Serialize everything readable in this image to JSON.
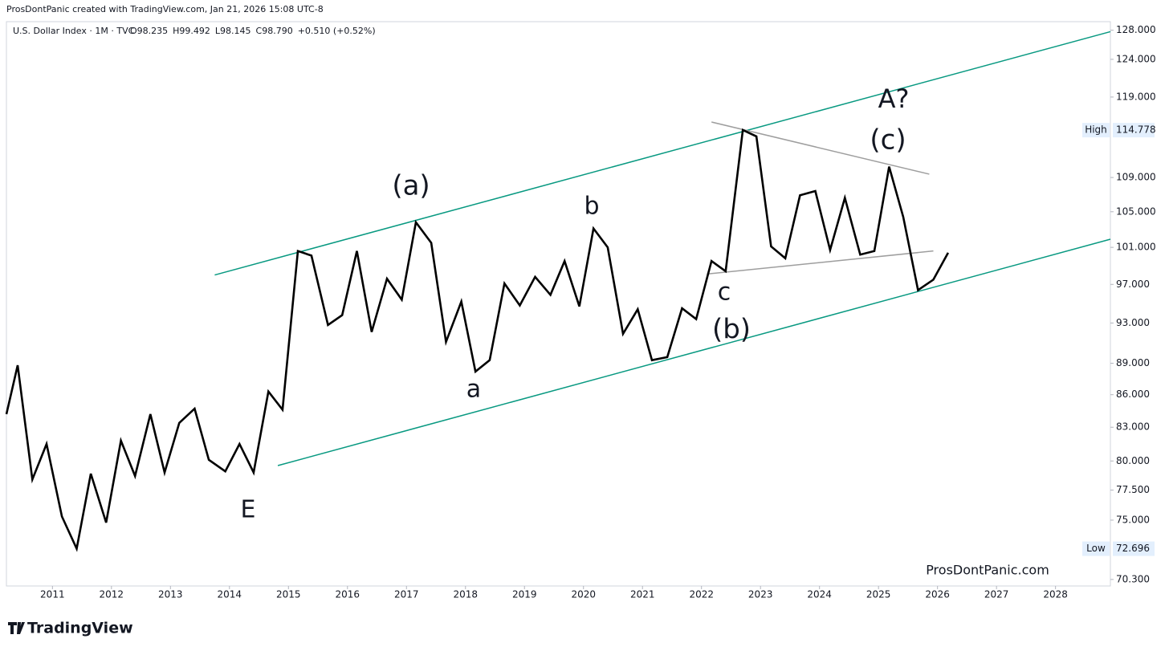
{
  "header": "ProsDontPanic created with TradingView.com, Jan 21, 2026 15:08 UTC-8",
  "footer_brand": "TradingView",
  "chart_data": {
    "type": "line",
    "symbol": "U.S. Dollar Index · 1M · TVC",
    "ohlc": [
      "O98.235",
      "H99.492",
      "L98.145",
      "C98.790",
      "+0.510 (+0.52%)"
    ],
    "log_scale": true,
    "grid": false,
    "x": [
      2010.22,
      2010.41,
      2010.66,
      2010.9,
      2011.16,
      2011.41,
      2011.65,
      2011.91,
      2012.16,
      2012.4,
      2012.66,
      2012.9,
      2013.15,
      2013.41,
      2013.65,
      2013.93,
      2014.17,
      2014.41,
      2014.66,
      2014.9,
      2015.16,
      2015.39,
      2015.67,
      2015.91,
      2016.16,
      2016.41,
      2016.67,
      2016.92,
      2017.16,
      2017.42,
      2017.67,
      2017.93,
      2018.17,
      2018.41,
      2018.66,
      2018.92,
      2019.18,
      2019.44,
      2019.68,
      2019.93,
      2020.17,
      2020.41,
      2020.67,
      2020.92,
      2021.16,
      2021.42,
      2021.67,
      2021.91,
      2022.17,
      2022.41,
      2022.7,
      2022.93,
      2023.18,
      2023.42,
      2023.67,
      2023.93,
      2024.18,
      2024.43,
      2024.69,
      2024.93,
      2025.18,
      2025.42,
      2025.67,
      2025.93,
      2026.18
    ],
    "series": [
      {
        "color": "#000000",
        "values": [
          84.2,
          88.8,
          78.4,
          81.5,
          75.3,
          72.7,
          78.9,
          74.8,
          81.8,
          78.7,
          84.2,
          79.0,
          83.4,
          84.7,
          80.1,
          79.1,
          81.5,
          79.0,
          86.3,
          84.6,
          100.6,
          100.1,
          92.8,
          93.8,
          100.6,
          92.1,
          97.6,
          95.4,
          103.8,
          101.5,
          91.1,
          95.2,
          88.2,
          89.3,
          97.1,
          94.8,
          97.8,
          95.9,
          99.5,
          94.7,
          103.1,
          101.0,
          91.9,
          94.4,
          89.3,
          89.6,
          94.5,
          93.4,
          99.5,
          98.4,
          114.8,
          114.0,
          101.1,
          99.8,
          106.9,
          107.4,
          100.7,
          106.6,
          100.2,
          100.6,
          110.3,
          104.4,
          96.4,
          97.5,
          100.4
        ]
      }
    ],
    "trendlines": [
      {
        "color": "#089981",
        "x": [
          2013.75,
          2028.93
        ],
        "values": [
          98.0,
          127.8
        ]
      },
      {
        "color": "#089981",
        "x": [
          2014.82,
          2028.93
        ],
        "values": [
          79.6,
          101.9
        ]
      },
      {
        "color": "#9e9e9e",
        "x": [
          2022.17,
          2025.86
        ],
        "values": [
          115.8,
          109.4
        ]
      },
      {
        "color": "#9e9e9e",
        "x": [
          2022.09,
          2025.93
        ],
        "values": [
          98.1,
          100.6
        ]
      }
    ],
    "annotations": [
      {
        "text": "(a)",
        "color": "#089981"
      },
      {
        "text": "b",
        "color": "#e65100"
      },
      {
        "text": "a",
        "color": "#e65100"
      },
      {
        "text": "E",
        "color": "#2962ff"
      },
      {
        "text": "c",
        "color": "#e65100"
      },
      {
        "text": "(b)",
        "color": "#089981"
      },
      {
        "text": "(c)",
        "color": "#089981"
      },
      {
        "text": "A?",
        "color": "#2962ff"
      },
      {
        "text": "ProsDontPanic.com",
        "color": "#131722"
      }
    ],
    "high": {
      "label": "High",
      "value": 114.778
    },
    "low": {
      "label": "Low",
      "value": 72.696
    },
    "xlim": [
      2010.22,
      2028.93
    ],
    "ylim": [
      69.8,
      129.2
    ],
    "xticks": [
      2011,
      2012,
      2013,
      2014,
      2015,
      2016,
      2017,
      2018,
      2019,
      2020,
      2021,
      2022,
      2023,
      2024,
      2025,
      2026,
      2027,
      2028
    ],
    "yticks": [
      {
        "value": 128,
        "label": "128.000"
      },
      {
        "value": 124,
        "label": "124.000"
      },
      {
        "value": 119,
        "label": "119.000"
      },
      {
        "value": 109,
        "label": "109.000"
      },
      {
        "value": 105,
        "label": "105.000"
      },
      {
        "value": 101,
        "label": "101.000"
      },
      {
        "value": 97,
        "label": "97.000"
      },
      {
        "value": 93,
        "label": "93.000"
      },
      {
        "value": 89,
        "label": "89.000"
      },
      {
        "value": 86,
        "label": "86.000"
      },
      {
        "value": 83,
        "label": "83.000"
      },
      {
        "value": 80,
        "label": "80.000"
      },
      {
        "value": 77.5,
        "label": "77.500"
      },
      {
        "value": 75,
        "label": "75.000"
      },
      {
        "value": 70.3,
        "label": "70.300"
      }
    ]
  }
}
